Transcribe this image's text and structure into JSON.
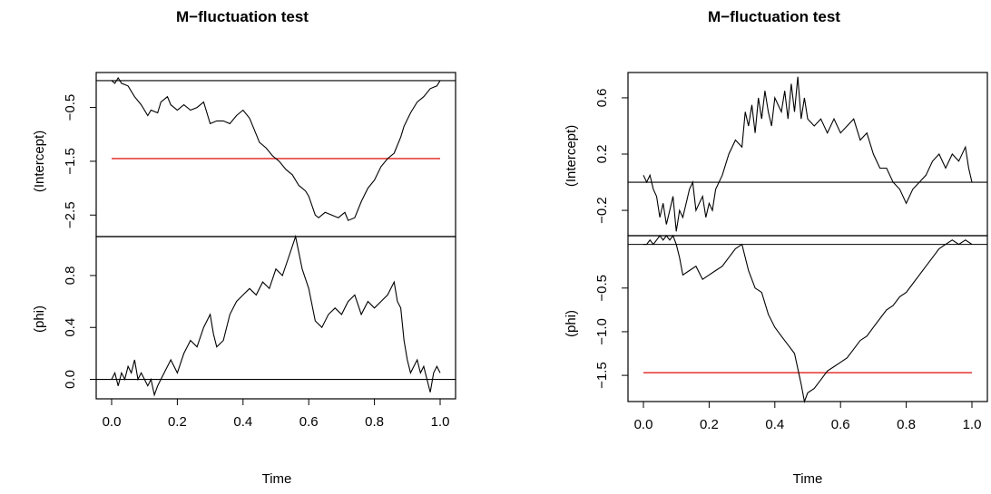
{
  "chart_data": [
    {
      "type": "line",
      "title": "M−fluctuation test",
      "xlabel": "Time",
      "x_ticks": [
        "0.0",
        "0.2",
        "0.4",
        "0.6",
        "0.8",
        "1.0"
      ],
      "xlim": [
        0,
        1
      ],
      "grid": false,
      "panels": [
        {
          "ylabel": "(Intercept)",
          "ylim": [
            -2.9,
            0.15
          ],
          "y_ticks": [
            -0.5,
            -1.5,
            -2.5
          ],
          "y_tick_labels": [
            "−0.5",
            "−1.5",
            "−2.5"
          ],
          "reference_line": 0,
          "boundary": -1.45,
          "series": {
            "x": [
              0,
              0.01,
              0.02,
              0.03,
              0.05,
              0.07,
              0.09,
              0.11,
              0.12,
              0.14,
              0.15,
              0.17,
              0.18,
              0.2,
              0.22,
              0.24,
              0.26,
              0.28,
              0.3,
              0.32,
              0.34,
              0.36,
              0.38,
              0.4,
              0.42,
              0.44,
              0.45,
              0.47,
              0.49,
              0.51,
              0.53,
              0.55,
              0.57,
              0.59,
              0.6,
              0.62,
              0.63,
              0.65,
              0.67,
              0.69,
              0.71,
              0.72,
              0.74,
              0.76,
              0.78,
              0.8,
              0.82,
              0.84,
              0.86,
              0.88,
              0.89,
              0.91,
              0.93,
              0.95,
              0.97,
              0.99,
              1.0
            ],
            "y": [
              0.0,
              -0.05,
              0.05,
              -0.05,
              -0.1,
              -0.3,
              -0.45,
              -0.65,
              -0.55,
              -0.6,
              -0.4,
              -0.3,
              -0.45,
              -0.55,
              -0.45,
              -0.55,
              -0.5,
              -0.4,
              -0.8,
              -0.75,
              -0.75,
              -0.8,
              -0.65,
              -0.55,
              -0.7,
              -1.0,
              -1.15,
              -1.25,
              -1.4,
              -1.5,
              -1.65,
              -1.75,
              -1.95,
              -2.05,
              -2.15,
              -2.5,
              -2.55,
              -2.45,
              -2.5,
              -2.55,
              -2.45,
              -2.6,
              -2.55,
              -2.25,
              -2.0,
              -1.85,
              -1.6,
              -1.45,
              -1.35,
              -1.05,
              -0.85,
              -0.6,
              -0.4,
              -0.3,
              -0.15,
              -0.1,
              0.0
            ]
          }
        },
        {
          "ylabel": "(phi)",
          "ylim": [
            -0.15,
            1.1
          ],
          "y_ticks": [
            0.0,
            0.4,
            0.8
          ],
          "y_tick_labels": [
            "0.0",
            "0.4",
            "0.8"
          ],
          "reference_line": 0,
          "series": {
            "x": [
              0,
              0.01,
              0.02,
              0.03,
              0.04,
              0.05,
              0.06,
              0.07,
              0.08,
              0.09,
              0.1,
              0.11,
              0.12,
              0.13,
              0.14,
              0.15,
              0.16,
              0.18,
              0.2,
              0.22,
              0.24,
              0.26,
              0.28,
              0.3,
              0.31,
              0.32,
              0.34,
              0.36,
              0.38,
              0.4,
              0.42,
              0.44,
              0.46,
              0.48,
              0.5,
              0.52,
              0.54,
              0.56,
              0.58,
              0.6,
              0.62,
              0.64,
              0.66,
              0.68,
              0.7,
              0.72,
              0.74,
              0.76,
              0.78,
              0.8,
              0.82,
              0.84,
              0.86,
              0.87,
              0.88,
              0.89,
              0.9,
              0.91,
              0.92,
              0.93,
              0.94,
              0.95,
              0.96,
              0.97,
              0.98,
              0.99,
              1.0
            ],
            "y": [
              0.0,
              0.05,
              -0.05,
              0.05,
              0.0,
              0.1,
              0.05,
              0.15,
              0.0,
              0.05,
              0.0,
              -0.05,
              0.0,
              -0.12,
              -0.05,
              0.0,
              0.05,
              0.15,
              0.05,
              0.2,
              0.3,
              0.25,
              0.4,
              0.5,
              0.35,
              0.25,
              0.3,
              0.5,
              0.6,
              0.65,
              0.7,
              0.65,
              0.75,
              0.7,
              0.85,
              0.8,
              0.95,
              1.1,
              0.85,
              0.7,
              0.45,
              0.4,
              0.5,
              0.55,
              0.5,
              0.6,
              0.65,
              0.5,
              0.6,
              0.55,
              0.6,
              0.65,
              0.75,
              0.6,
              0.55,
              0.3,
              0.15,
              0.05,
              0.1,
              0.15,
              0.05,
              0.1,
              0.0,
              -0.1,
              0.05,
              0.1,
              0.05
            ]
          }
        }
      ]
    },
    {
      "type": "line",
      "title": "M−fluctuation test",
      "xlabel": "Time",
      "x_ticks": [
        "0.0",
        "0.2",
        "0.4",
        "0.6",
        "0.8",
        "1.0"
      ],
      "xlim": [
        0,
        1
      ],
      "grid": false,
      "panels": [
        {
          "ylabel": "(Intercept)",
          "ylim": [
            -0.38,
            0.78
          ],
          "y_ticks": [
            0.6,
            0.2,
            -0.2
          ],
          "y_tick_labels": [
            "0.6",
            "0.2",
            "−0.2"
          ],
          "reference_line": 0,
          "series": {
            "x": [
              0,
              0.01,
              0.02,
              0.03,
              0.04,
              0.05,
              0.06,
              0.07,
              0.08,
              0.09,
              0.1,
              0.11,
              0.12,
              0.13,
              0.14,
              0.15,
              0.16,
              0.17,
              0.18,
              0.19,
              0.2,
              0.21,
              0.22,
              0.24,
              0.26,
              0.28,
              0.3,
              0.31,
              0.32,
              0.33,
              0.34,
              0.35,
              0.36,
              0.37,
              0.38,
              0.39,
              0.4,
              0.41,
              0.42,
              0.43,
              0.44,
              0.45,
              0.46,
              0.47,
              0.48,
              0.49,
              0.5,
              0.52,
              0.54,
              0.56,
              0.58,
              0.6,
              0.62,
              0.64,
              0.66,
              0.68,
              0.7,
              0.72,
              0.74,
              0.76,
              0.78,
              0.8,
              0.82,
              0.84,
              0.86,
              0.88,
              0.9,
              0.92,
              0.94,
              0.96,
              0.98,
              0.99,
              1.0
            ],
            "y": [
              0.05,
              0.0,
              0.05,
              -0.05,
              -0.1,
              -0.25,
              -0.15,
              -0.3,
              -0.2,
              -0.1,
              -0.35,
              -0.2,
              -0.25,
              -0.15,
              -0.05,
              0.0,
              -0.2,
              -0.15,
              -0.1,
              -0.25,
              -0.15,
              -0.2,
              -0.05,
              0.05,
              0.2,
              0.3,
              0.25,
              0.5,
              0.4,
              0.55,
              0.35,
              0.6,
              0.45,
              0.65,
              0.5,
              0.4,
              0.6,
              0.55,
              0.5,
              0.65,
              0.45,
              0.7,
              0.5,
              0.75,
              0.45,
              0.6,
              0.45,
              0.4,
              0.45,
              0.35,
              0.45,
              0.35,
              0.4,
              0.45,
              0.3,
              0.35,
              0.2,
              0.1,
              0.1,
              0.0,
              -0.05,
              -0.15,
              -0.05,
              0.0,
              0.05,
              0.15,
              0.2,
              0.1,
              0.2,
              0.15,
              0.25,
              0.1,
              0.0
            ]
          }
        },
        {
          "ylabel": "(phi)",
          "ylim": [
            -1.8,
            0.1
          ],
          "y_ticks": [
            -0.5,
            -1.0,
            -1.5
          ],
          "y_tick_labels": [
            "−0.5",
            "−1.0",
            "−1.5"
          ],
          "reference_line": 0,
          "boundary": -1.47,
          "series": {
            "x": [
              0,
              0.01,
              0.02,
              0.03,
              0.04,
              0.05,
              0.06,
              0.07,
              0.08,
              0.09,
              0.1,
              0.11,
              0.12,
              0.14,
              0.16,
              0.18,
              0.2,
              0.22,
              0.24,
              0.26,
              0.28,
              0.3,
              0.32,
              0.34,
              0.36,
              0.38,
              0.4,
              0.42,
              0.44,
              0.46,
              0.48,
              0.49,
              0.5,
              0.52,
              0.54,
              0.56,
              0.58,
              0.6,
              0.62,
              0.64,
              0.66,
              0.68,
              0.7,
              0.72,
              0.74,
              0.76,
              0.78,
              0.8,
              0.82,
              0.84,
              0.86,
              0.88,
              0.9,
              0.92,
              0.94,
              0.96,
              0.98,
              1.0
            ],
            "y": [
              0.0,
              0.0,
              0.05,
              0.0,
              0.05,
              0.1,
              0.05,
              0.1,
              0.05,
              0.1,
              0.0,
              -0.15,
              -0.35,
              -0.3,
              -0.25,
              -0.4,
              -0.35,
              -0.3,
              -0.25,
              -0.15,
              -0.05,
              0.0,
              -0.3,
              -0.5,
              -0.55,
              -0.8,
              -0.95,
              -1.05,
              -1.15,
              -1.25,
              -1.6,
              -1.8,
              -1.7,
              -1.65,
              -1.55,
              -1.45,
              -1.4,
              -1.35,
              -1.3,
              -1.2,
              -1.1,
              -1.05,
              -0.95,
              -0.85,
              -0.75,
              -0.7,
              -0.6,
              -0.55,
              -0.45,
              -0.35,
              -0.25,
              -0.15,
              -0.05,
              0.0,
              0.05,
              0.0,
              0.05,
              0.0
            ]
          }
        }
      ]
    }
  ]
}
